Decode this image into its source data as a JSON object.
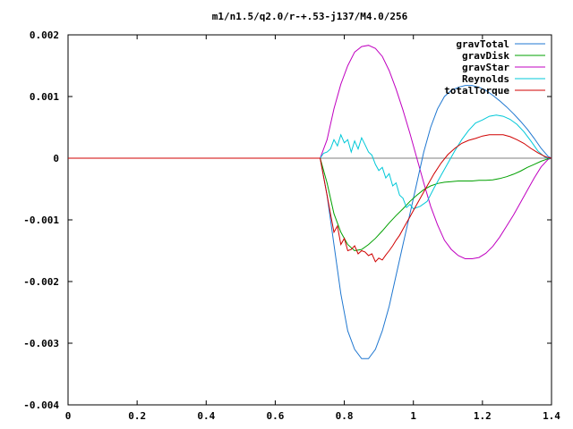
{
  "chart_data": {
    "type": "line",
    "title": "m1/n1.5/q2.0/r-+.53-j137/M4.0/256",
    "xlabel": "",
    "ylabel": "",
    "xlim": [
      0,
      1.4
    ],
    "ylim": [
      -0.004,
      0.002
    ],
    "xticks": [
      {
        "value": 0,
        "label": "0"
      },
      {
        "value": 0.2,
        "label": "0.2"
      },
      {
        "value": 0.4,
        "label": "0.4"
      },
      {
        "value": 0.6,
        "label": "0.6"
      },
      {
        "value": 0.8,
        "label": "0.8"
      },
      {
        "value": 1.0,
        "label": "1"
      },
      {
        "value": 1.2,
        "label": "1.2"
      },
      {
        "value": 1.4,
        "label": "1.4"
      }
    ],
    "yticks": [
      {
        "value": 0.002,
        "label": "0.002"
      },
      {
        "value": 0.001,
        "label": "0.001"
      },
      {
        "value": 0,
        "label": "0"
      },
      {
        "value": -0.001,
        "label": "-0.001"
      },
      {
        "value": -0.002,
        "label": "-0.002"
      },
      {
        "value": -0.003,
        "label": "-0.003"
      },
      {
        "value": -0.004,
        "label": "-0.004"
      }
    ],
    "grid": false,
    "legend_position": "top-right",
    "series": [
      {
        "name": "gravTotal",
        "color": "#1f77d0",
        "x": [
          0,
          0.73,
          0.75,
          0.77,
          0.79,
          0.81,
          0.83,
          0.85,
          0.87,
          0.89,
          0.91,
          0.93,
          0.95,
          0.97,
          0.99,
          1.01,
          1.03,
          1.05,
          1.07,
          1.09,
          1.11,
          1.13,
          1.15,
          1.17,
          1.19,
          1.21,
          1.23,
          1.25,
          1.27,
          1.29,
          1.31,
          1.33,
          1.35,
          1.37,
          1.39,
          1.4
        ],
        "y": [
          0,
          0,
          -0.0006,
          -0.0014,
          -0.0022,
          -0.0028,
          -0.0031,
          -0.00325,
          -0.00325,
          -0.0031,
          -0.0028,
          -0.0024,
          -0.0019,
          -0.0014,
          -0.0009,
          -0.0004,
          0.0001,
          0.0005,
          0.0008,
          0.001,
          0.0011,
          0.00115,
          0.00118,
          0.00118,
          0.00115,
          0.0011,
          0.00102,
          0.00093,
          0.00083,
          0.00072,
          0.0006,
          0.00047,
          0.00032,
          0.00016,
          3e-05,
          0
        ]
      },
      {
        "name": "gravDisk",
        "color": "#00a000",
        "x": [
          0,
          0.73,
          0.75,
          0.77,
          0.79,
          0.81,
          0.83,
          0.85,
          0.87,
          0.89,
          0.91,
          0.93,
          0.95,
          0.97,
          0.99,
          1.01,
          1.03,
          1.05,
          1.07,
          1.09,
          1.11,
          1.13,
          1.15,
          1.17,
          1.19,
          1.21,
          1.23,
          1.25,
          1.27,
          1.29,
          1.31,
          1.33,
          1.35,
          1.37,
          1.39,
          1.4
        ],
        "y": [
          0,
          0,
          -0.0004,
          -0.0009,
          -0.0012,
          -0.0014,
          -0.0015,
          -0.00148,
          -0.0014,
          -0.0013,
          -0.00118,
          -0.00105,
          -0.00093,
          -0.00082,
          -0.0007,
          -0.0006,
          -0.00051,
          -0.00045,
          -0.00041,
          -0.00039,
          -0.00038,
          -0.00037,
          -0.00037,
          -0.00037,
          -0.00036,
          -0.00036,
          -0.00035,
          -0.00033,
          -0.0003,
          -0.00026,
          -0.00021,
          -0.00015,
          -0.0001,
          -5e-05,
          -1e-05,
          0
        ]
      },
      {
        "name": "gravStar",
        "color": "#c000c0",
        "x": [
          0,
          0.73,
          0.75,
          0.77,
          0.79,
          0.81,
          0.83,
          0.85,
          0.87,
          0.89,
          0.91,
          0.93,
          0.95,
          0.97,
          0.99,
          1.01,
          1.03,
          1.05,
          1.07,
          1.09,
          1.11,
          1.13,
          1.15,
          1.17,
          1.19,
          1.21,
          1.23,
          1.25,
          1.27,
          1.29,
          1.31,
          1.33,
          1.35,
          1.37,
          1.39,
          1.4
        ],
        "y": [
          0,
          0,
          0.0003,
          0.0008,
          0.0012,
          0.0015,
          0.00172,
          0.00181,
          0.00183,
          0.00178,
          0.00165,
          0.00142,
          0.00112,
          0.00078,
          0.0004,
          0,
          -0.0004,
          -0.00078,
          -0.00108,
          -0.00133,
          -0.00148,
          -0.00158,
          -0.00163,
          -0.00163,
          -0.00161,
          -0.00154,
          -0.00143,
          -0.00128,
          -0.0011,
          -0.00092,
          -0.00072,
          -0.00052,
          -0.00032,
          -0.00014,
          -2e-05,
          0
        ]
      },
      {
        "name": "Reynolds",
        "color": "#00c8d8",
        "x": [
          0,
          0.73,
          0.74,
          0.75,
          0.76,
          0.77,
          0.78,
          0.79,
          0.8,
          0.81,
          0.82,
          0.83,
          0.84,
          0.85,
          0.86,
          0.87,
          0.88,
          0.89,
          0.9,
          0.91,
          0.92,
          0.93,
          0.94,
          0.95,
          0.96,
          0.97,
          0.98,
          0.99,
          1.0,
          1.02,
          1.04,
          1.06,
          1.08,
          1.1,
          1.12,
          1.14,
          1.16,
          1.18,
          1.2,
          1.22,
          1.24,
          1.26,
          1.28,
          1.3,
          1.32,
          1.34,
          1.36,
          1.38,
          1.39,
          1.4
        ],
        "y": [
          0,
          0,
          8e-05,
          0.0001,
          0.00015,
          0.0003,
          0.0002,
          0.00038,
          0.00025,
          0.0003,
          0.0001,
          0.00028,
          0.00015,
          0.00033,
          0.00022,
          0.0001,
          5e-05,
          -0.0001,
          -0.0002,
          -0.00015,
          -0.00032,
          -0.00025,
          -0.00045,
          -0.0004,
          -0.0006,
          -0.00065,
          -0.0008,
          -0.00075,
          -0.00082,
          -0.00078,
          -0.0007,
          -0.00048,
          -0.00028,
          -8e-05,
          0.00012,
          0.0003,
          0.00045,
          0.00057,
          0.00062,
          0.00068,
          0.0007,
          0.00068,
          0.00063,
          0.00055,
          0.00043,
          0.00028,
          0.00012,
          2e-05,
          0,
          0
        ]
      },
      {
        "name": "totalTorque",
        "color": "#d00000",
        "x": [
          0,
          0.73,
          0.74,
          0.75,
          0.76,
          0.77,
          0.78,
          0.79,
          0.8,
          0.81,
          0.82,
          0.83,
          0.84,
          0.85,
          0.86,
          0.87,
          0.88,
          0.89,
          0.9,
          0.91,
          0.92,
          0.93,
          0.94,
          0.95,
          0.96,
          0.97,
          0.98,
          0.99,
          1.0,
          1.02,
          1.04,
          1.06,
          1.08,
          1.1,
          1.12,
          1.14,
          1.16,
          1.18,
          1.2,
          1.22,
          1.24,
          1.26,
          1.28,
          1.3,
          1.32,
          1.34,
          1.36,
          1.38,
          1.39,
          1.4
        ],
        "y": [
          0,
          0,
          -0.0003,
          -0.0006,
          -0.0009,
          -0.0012,
          -0.0011,
          -0.0014,
          -0.0013,
          -0.0015,
          -0.00148,
          -0.00142,
          -0.00155,
          -0.0015,
          -0.00152,
          -0.00158,
          -0.00155,
          -0.00168,
          -0.00162,
          -0.00165,
          -0.00157,
          -0.0015,
          -0.00142,
          -0.00133,
          -0.00125,
          -0.00115,
          -0.00105,
          -0.00095,
          -0.00085,
          -0.00065,
          -0.00045,
          -0.00025,
          -8e-05,
          6e-05,
          0.00016,
          0.00024,
          0.00029,
          0.00032,
          0.00036,
          0.00038,
          0.00038,
          0.00038,
          0.00035,
          0.0003,
          0.00024,
          0.00016,
          9e-05,
          3e-05,
          1e-05,
          0
        ]
      }
    ]
  }
}
